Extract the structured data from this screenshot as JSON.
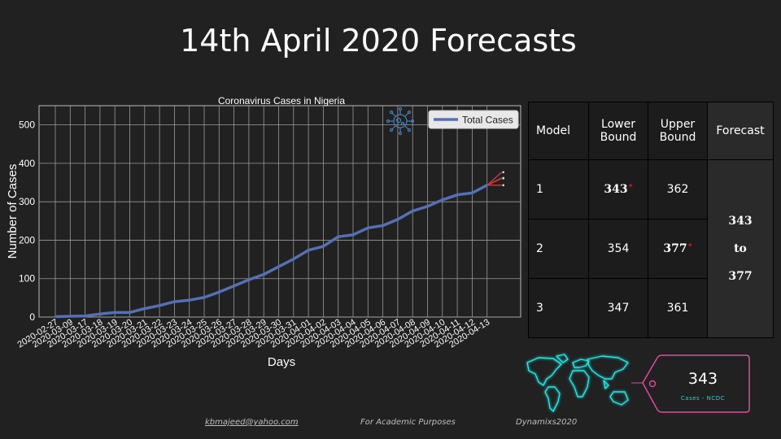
{
  "page": {
    "title": "14th April 2020 Forecasts"
  },
  "chart_data": {
    "type": "line",
    "title": "Coronavirus Cases in Nigeria",
    "xlabel": "Days",
    "ylabel": "Number of Cases",
    "ylim": [
      0,
      550
    ],
    "yticks": [
      0,
      100,
      200,
      300,
      400,
      500
    ],
    "categories": [
      "2020-02-27",
      "2020-03-09",
      "2020-03-17",
      "2020-03-18",
      "2020-03-19",
      "2020-03-20",
      "2020-03-21",
      "2020-03-22",
      "2020-03-23",
      "2020-03-24",
      "2020-03-25",
      "2020-03-26",
      "2020-03-27",
      "2020-03-28",
      "2020-03-29",
      "2020-03-30",
      "2020-03-31",
      "2020-04-01",
      "2020-04-02",
      "2020-04-03",
      "2020-04-04",
      "2020-04-05",
      "2020-04-06",
      "2020-04-07",
      "2020-04-08",
      "2020-04-09",
      "2020-04-10",
      "2020-04-11",
      "2020-04-12",
      "2020-04-13"
    ],
    "series": [
      {
        "name": "Total Cases",
        "color": "#5470b5",
        "values": [
          1,
          2,
          3,
          8,
          12,
          12,
          22,
          30,
          40,
          44,
          51,
          65,
          81,
          97,
          111,
          131,
          151,
          174,
          184,
          209,
          214,
          232,
          238,
          254,
          276,
          288,
          305,
          318,
          323,
          343
        ]
      }
    ],
    "forecast": {
      "color": "#d03a3a",
      "start": 343,
      "lines": [
        {
          "model": "1",
          "end": 362
        },
        {
          "model": "2",
          "end": 377
        },
        {
          "model": "3",
          "end": 361
        },
        {
          "model": "lower",
          "end": 343
        }
      ]
    },
    "legend_position": "top-right",
    "grid": true
  },
  "table": {
    "headers": {
      "model": "Model",
      "lower": "Lower Bound",
      "upper": "Upper Bound",
      "forecast": "Forecast"
    },
    "rows": [
      {
        "model": "1",
        "lower": "343",
        "upper": "362",
        "lower_star": "*",
        "upper_star": ""
      },
      {
        "model": "2",
        "lower": "354",
        "upper": "377",
        "lower_star": "",
        "upper_star": "*"
      },
      {
        "model": "3",
        "lower": "347",
        "upper": "361",
        "lower_star": "",
        "upper_star": ""
      }
    ],
    "forecast_from": "343",
    "forecast_to_word": "to",
    "forecast_to": "377"
  },
  "tag": {
    "value": "343",
    "caption": "Cases - NCDC"
  },
  "footer": {
    "email": "kbmajeed@yahoo.com",
    "email_suffix": ".",
    "purpose": "For Academic Purposes",
    "brand": "Dynamixs2020"
  },
  "colors": {
    "background": "#212121",
    "glow": "#22e5e5",
    "tag_border": "#e04aa0"
  },
  "icons": {
    "virus": "virus-icon",
    "map": "world-map-glow"
  }
}
